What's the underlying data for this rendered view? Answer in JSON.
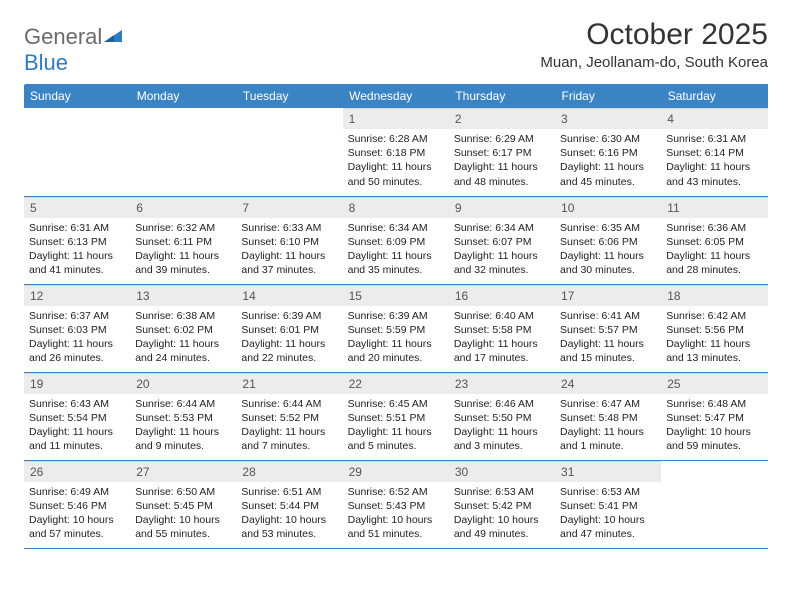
{
  "logo": {
    "part1": "General",
    "part2": "Blue"
  },
  "title": "October 2025",
  "location": "Muan, Jeollanam-do, South Korea",
  "colors": {
    "header_bg": "#3b84c4",
    "header_text": "#ffffff",
    "daynum_bg": "#ececec",
    "border": "#3b84c4",
    "logo_gray": "#6b6b6b",
    "logo_blue": "#2f7bbf"
  },
  "weekdays": [
    "Sunday",
    "Monday",
    "Tuesday",
    "Wednesday",
    "Thursday",
    "Friday",
    "Saturday"
  ],
  "weeks": [
    [
      {
        "empty": true
      },
      {
        "empty": true
      },
      {
        "empty": true
      },
      {
        "day": "1",
        "sunrise": "Sunrise: 6:28 AM",
        "sunset": "Sunset: 6:18 PM",
        "daylight": "Daylight: 11 hours and 50 minutes."
      },
      {
        "day": "2",
        "sunrise": "Sunrise: 6:29 AM",
        "sunset": "Sunset: 6:17 PM",
        "daylight": "Daylight: 11 hours and 48 minutes."
      },
      {
        "day": "3",
        "sunrise": "Sunrise: 6:30 AM",
        "sunset": "Sunset: 6:16 PM",
        "daylight": "Daylight: 11 hours and 45 minutes."
      },
      {
        "day": "4",
        "sunrise": "Sunrise: 6:31 AM",
        "sunset": "Sunset: 6:14 PM",
        "daylight": "Daylight: 11 hours and 43 minutes."
      }
    ],
    [
      {
        "day": "5",
        "sunrise": "Sunrise: 6:31 AM",
        "sunset": "Sunset: 6:13 PM",
        "daylight": "Daylight: 11 hours and 41 minutes."
      },
      {
        "day": "6",
        "sunrise": "Sunrise: 6:32 AM",
        "sunset": "Sunset: 6:11 PM",
        "daylight": "Daylight: 11 hours and 39 minutes."
      },
      {
        "day": "7",
        "sunrise": "Sunrise: 6:33 AM",
        "sunset": "Sunset: 6:10 PM",
        "daylight": "Daylight: 11 hours and 37 minutes."
      },
      {
        "day": "8",
        "sunrise": "Sunrise: 6:34 AM",
        "sunset": "Sunset: 6:09 PM",
        "daylight": "Daylight: 11 hours and 35 minutes."
      },
      {
        "day": "9",
        "sunrise": "Sunrise: 6:34 AM",
        "sunset": "Sunset: 6:07 PM",
        "daylight": "Daylight: 11 hours and 32 minutes."
      },
      {
        "day": "10",
        "sunrise": "Sunrise: 6:35 AM",
        "sunset": "Sunset: 6:06 PM",
        "daylight": "Daylight: 11 hours and 30 minutes."
      },
      {
        "day": "11",
        "sunrise": "Sunrise: 6:36 AM",
        "sunset": "Sunset: 6:05 PM",
        "daylight": "Daylight: 11 hours and 28 minutes."
      }
    ],
    [
      {
        "day": "12",
        "sunrise": "Sunrise: 6:37 AM",
        "sunset": "Sunset: 6:03 PM",
        "daylight": "Daylight: 11 hours and 26 minutes."
      },
      {
        "day": "13",
        "sunrise": "Sunrise: 6:38 AM",
        "sunset": "Sunset: 6:02 PM",
        "daylight": "Daylight: 11 hours and 24 minutes."
      },
      {
        "day": "14",
        "sunrise": "Sunrise: 6:39 AM",
        "sunset": "Sunset: 6:01 PM",
        "daylight": "Daylight: 11 hours and 22 minutes."
      },
      {
        "day": "15",
        "sunrise": "Sunrise: 6:39 AM",
        "sunset": "Sunset: 5:59 PM",
        "daylight": "Daylight: 11 hours and 20 minutes."
      },
      {
        "day": "16",
        "sunrise": "Sunrise: 6:40 AM",
        "sunset": "Sunset: 5:58 PM",
        "daylight": "Daylight: 11 hours and 17 minutes."
      },
      {
        "day": "17",
        "sunrise": "Sunrise: 6:41 AM",
        "sunset": "Sunset: 5:57 PM",
        "daylight": "Daylight: 11 hours and 15 minutes."
      },
      {
        "day": "18",
        "sunrise": "Sunrise: 6:42 AM",
        "sunset": "Sunset: 5:56 PM",
        "daylight": "Daylight: 11 hours and 13 minutes."
      }
    ],
    [
      {
        "day": "19",
        "sunrise": "Sunrise: 6:43 AM",
        "sunset": "Sunset: 5:54 PM",
        "daylight": "Daylight: 11 hours and 11 minutes."
      },
      {
        "day": "20",
        "sunrise": "Sunrise: 6:44 AM",
        "sunset": "Sunset: 5:53 PM",
        "daylight": "Daylight: 11 hours and 9 minutes."
      },
      {
        "day": "21",
        "sunrise": "Sunrise: 6:44 AM",
        "sunset": "Sunset: 5:52 PM",
        "daylight": "Daylight: 11 hours and 7 minutes."
      },
      {
        "day": "22",
        "sunrise": "Sunrise: 6:45 AM",
        "sunset": "Sunset: 5:51 PM",
        "daylight": "Daylight: 11 hours and 5 minutes."
      },
      {
        "day": "23",
        "sunrise": "Sunrise: 6:46 AM",
        "sunset": "Sunset: 5:50 PM",
        "daylight": "Daylight: 11 hours and 3 minutes."
      },
      {
        "day": "24",
        "sunrise": "Sunrise: 6:47 AM",
        "sunset": "Sunset: 5:48 PM",
        "daylight": "Daylight: 11 hours and 1 minute."
      },
      {
        "day": "25",
        "sunrise": "Sunrise: 6:48 AM",
        "sunset": "Sunset: 5:47 PM",
        "daylight": "Daylight: 10 hours and 59 minutes."
      }
    ],
    [
      {
        "day": "26",
        "sunrise": "Sunrise: 6:49 AM",
        "sunset": "Sunset: 5:46 PM",
        "daylight": "Daylight: 10 hours and 57 minutes."
      },
      {
        "day": "27",
        "sunrise": "Sunrise: 6:50 AM",
        "sunset": "Sunset: 5:45 PM",
        "daylight": "Daylight: 10 hours and 55 minutes."
      },
      {
        "day": "28",
        "sunrise": "Sunrise: 6:51 AM",
        "sunset": "Sunset: 5:44 PM",
        "daylight": "Daylight: 10 hours and 53 minutes."
      },
      {
        "day": "29",
        "sunrise": "Sunrise: 6:52 AM",
        "sunset": "Sunset: 5:43 PM",
        "daylight": "Daylight: 10 hours and 51 minutes."
      },
      {
        "day": "30",
        "sunrise": "Sunrise: 6:53 AM",
        "sunset": "Sunset: 5:42 PM",
        "daylight": "Daylight: 10 hours and 49 minutes."
      },
      {
        "day": "31",
        "sunrise": "Sunrise: 6:53 AM",
        "sunset": "Sunset: 5:41 PM",
        "daylight": "Daylight: 10 hours and 47 minutes."
      },
      {
        "empty": true
      }
    ]
  ]
}
